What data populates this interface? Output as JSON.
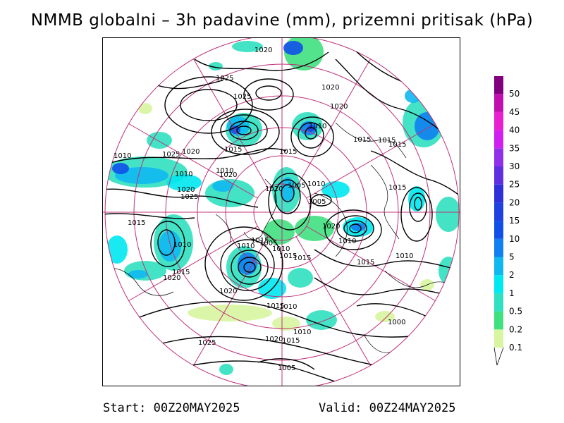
{
  "title": "NMMB globalni – 3h padavine (mm), prizemni pritisak (hPa)",
  "footer": {
    "start": "Start: 00Z20MAY2025",
    "valid": "Valid: 00Z24MAY2025"
  },
  "colors": {
    "graticule": "#c0307a",
    "isobar": "#000000",
    "coastline": "#000000"
  },
  "legend": {
    "levels": [
      {
        "label": "0.1",
        "color": "#d8f5a0"
      },
      {
        "label": "0.2",
        "color": "#40e080"
      },
      {
        "label": "0.5",
        "color": "#30e0c0"
      },
      {
        "label": "1",
        "color": "#00e8f0"
      },
      {
        "label": "2",
        "color": "#10b8f0"
      },
      {
        "label": "5",
        "color": "#1080f0"
      },
      {
        "label": "10",
        "color": "#1050e8"
      },
      {
        "label": "15",
        "color": "#2040e0"
      },
      {
        "label": "20",
        "color": "#3030d8"
      },
      {
        "label": "25",
        "color": "#6030e0"
      },
      {
        "label": "30",
        "color": "#9030e8"
      },
      {
        "label": "35",
        "color": "#d020f0"
      },
      {
        "label": "40",
        "color": "#e820d0"
      },
      {
        "label": "45",
        "color": "#c010b0"
      },
      {
        "label": "50",
        "color": "#800080"
      }
    ]
  },
  "isobar_labels": [
    "1020",
    "1025",
    "1025",
    "1020",
    "1020",
    "1010",
    "1010",
    "1015",
    "1015",
    "1010",
    "1005",
    "1020",
    "1015",
    "1025",
    "1020",
    "1010",
    "1010",
    "1020",
    "1015",
    "1005",
    "1020",
    "1025",
    "1015",
    "1020",
    "1010",
    "1010",
    "1015",
    "1010",
    "1005",
    "1015",
    "1010",
    "1015",
    "1015",
    "1010",
    "1015",
    "1020",
    "1020",
    "1010",
    "1015",
    "1025",
    "1020",
    "1015",
    "1010",
    "1000",
    "1005",
    "1015",
    "1015"
  ]
}
